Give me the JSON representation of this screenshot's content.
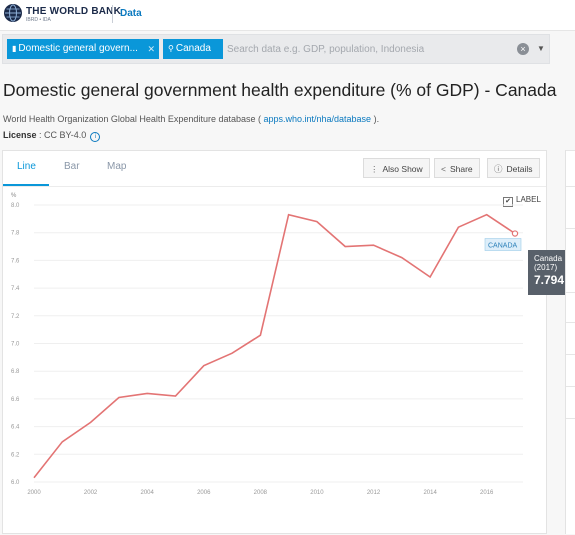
{
  "header": {
    "brand": "THE WORLD BANK",
    "brand_sub": "IBRD • IDA",
    "nav_data": "Data"
  },
  "search": {
    "chip_indicator": "Domestic general govern...",
    "chip_country": "Canada",
    "placeholder": "Search data e.g. GDP, population, Indonesia",
    "clear_icon": "clear-circle-icon",
    "caret_icon": "caret-down-icon"
  },
  "page": {
    "title": "Domestic general government health expenditure (% of GDP) - Canada",
    "source_prefix": "World Health Organization Global Health Expenditure database ( ",
    "source_link": "apps.who.int/nha/database",
    "source_suffix": " ).",
    "license_label": "License",
    "license_value": " : CC BY-4.0"
  },
  "tabs": [
    {
      "label": "Line",
      "active": true
    },
    {
      "label": "Bar",
      "active": false
    },
    {
      "label": "Map",
      "active": false
    }
  ],
  "toolbar": {
    "also_show": "Also Show",
    "share": "Share",
    "details": "Details",
    "label_toggle": "LABEL",
    "label_checked": true
  },
  "tooltip": {
    "country": "Canada",
    "year": "(2017)",
    "value": "7.794"
  },
  "colors": {
    "accent": "#0a97d9",
    "line": "#e37474",
    "tooltip_bg": "#58606a"
  },
  "chart_data": {
    "type": "line",
    "ylabel": "%",
    "xlabel": "",
    "series_label": "CANADA",
    "x": [
      2000,
      2001,
      2002,
      2003,
      2004,
      2005,
      2006,
      2007,
      2008,
      2009,
      2010,
      2011,
      2012,
      2013,
      2014,
      2015,
      2016,
      2017
    ],
    "series": [
      {
        "name": "Canada",
        "values": [
          6.03,
          6.29,
          6.43,
          6.61,
          6.64,
          6.62,
          6.84,
          6.93,
          7.06,
          7.93,
          7.88,
          7.7,
          7.71,
          7.62,
          7.48,
          7.84,
          7.93,
          7.794
        ]
      }
    ],
    "ylim": [
      6.0,
      8.0
    ],
    "yticks": [
      "6.0",
      "6.2",
      "6.4",
      "6.6",
      "6.8",
      "7.0",
      "7.2",
      "7.4",
      "7.6",
      "7.8",
      "8.0"
    ],
    "xticks": [
      "2000",
      "2002",
      "2004",
      "2006",
      "2008",
      "2010",
      "2012",
      "2014",
      "2016"
    ],
    "grid": true,
    "legend": "none"
  }
}
